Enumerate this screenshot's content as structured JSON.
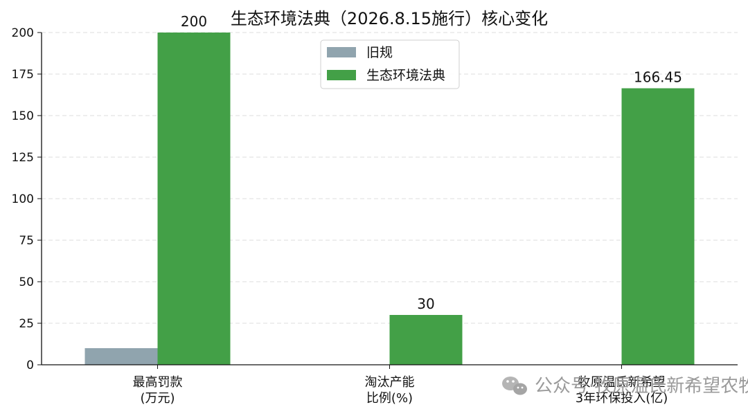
{
  "chart_data": {
    "type": "bar",
    "title": "生态环境法典（2026.8.15施行）核心变化",
    "categories": [
      [
        "最高罚款",
        "(万元)"
      ],
      [
        "淘汰产能",
        "比例(%)"
      ],
      [
        "牧原温氏新希望",
        "3年环保投入(亿)"
      ]
    ],
    "series": [
      {
        "name": "旧规",
        "color": "#90a4ae",
        "values": [
          10,
          0,
          0
        ],
        "labels": [
          "",
          "",
          ""
        ]
      },
      {
        "name": "生态环境法典",
        "color": "#43a047",
        "values": [
          200,
          30,
          166.45
        ],
        "labels": [
          "200",
          "30",
          "166.45"
        ]
      }
    ],
    "ylim": [
      0,
      200
    ],
    "yticks": [
      0,
      25,
      50,
      75,
      100,
      125,
      150,
      175,
      200
    ],
    "grid": true,
    "legend_position": "top-center"
  },
  "watermark": {
    "icon": "wechat-icon",
    "text": "公众号·牧原温氏新希望农牧网"
  }
}
